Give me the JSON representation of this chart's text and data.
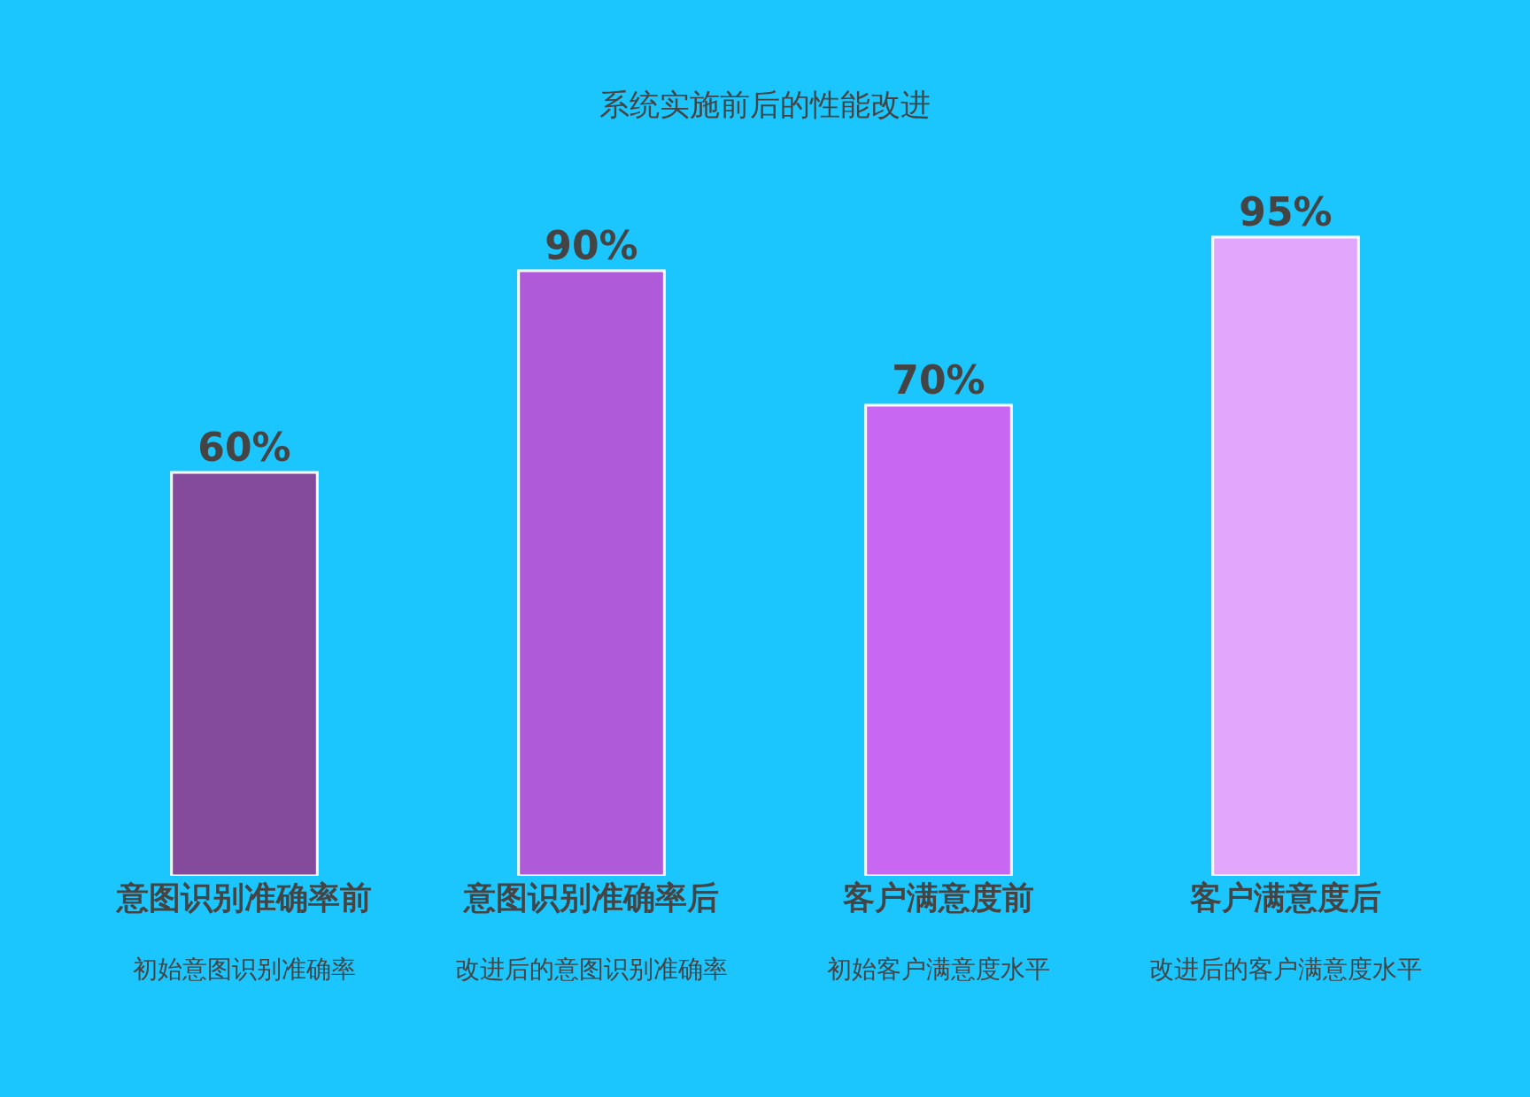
{
  "chart_data": {
    "type": "bar",
    "title": "系统实施前后的性能改进",
    "categories": [
      "意图识别准确率前",
      "意图识别准确率后",
      "客户满意度前",
      "客户满意度后"
    ],
    "values": [
      60,
      90,
      70,
      95
    ],
    "value_labels": [
      "60%",
      "90%",
      "70%",
      "95%"
    ],
    "colors": [
      "#844a9c",
      "#ae5ad9",
      "#c767f2",
      "#e2a6fc"
    ],
    "annotations": [
      "初始意图识别准确率",
      "改进后的意图识别准确率",
      "初始客户满意度水平",
      "改进后的客户满意度水平"
    ],
    "tick_labels": "x"
  }
}
